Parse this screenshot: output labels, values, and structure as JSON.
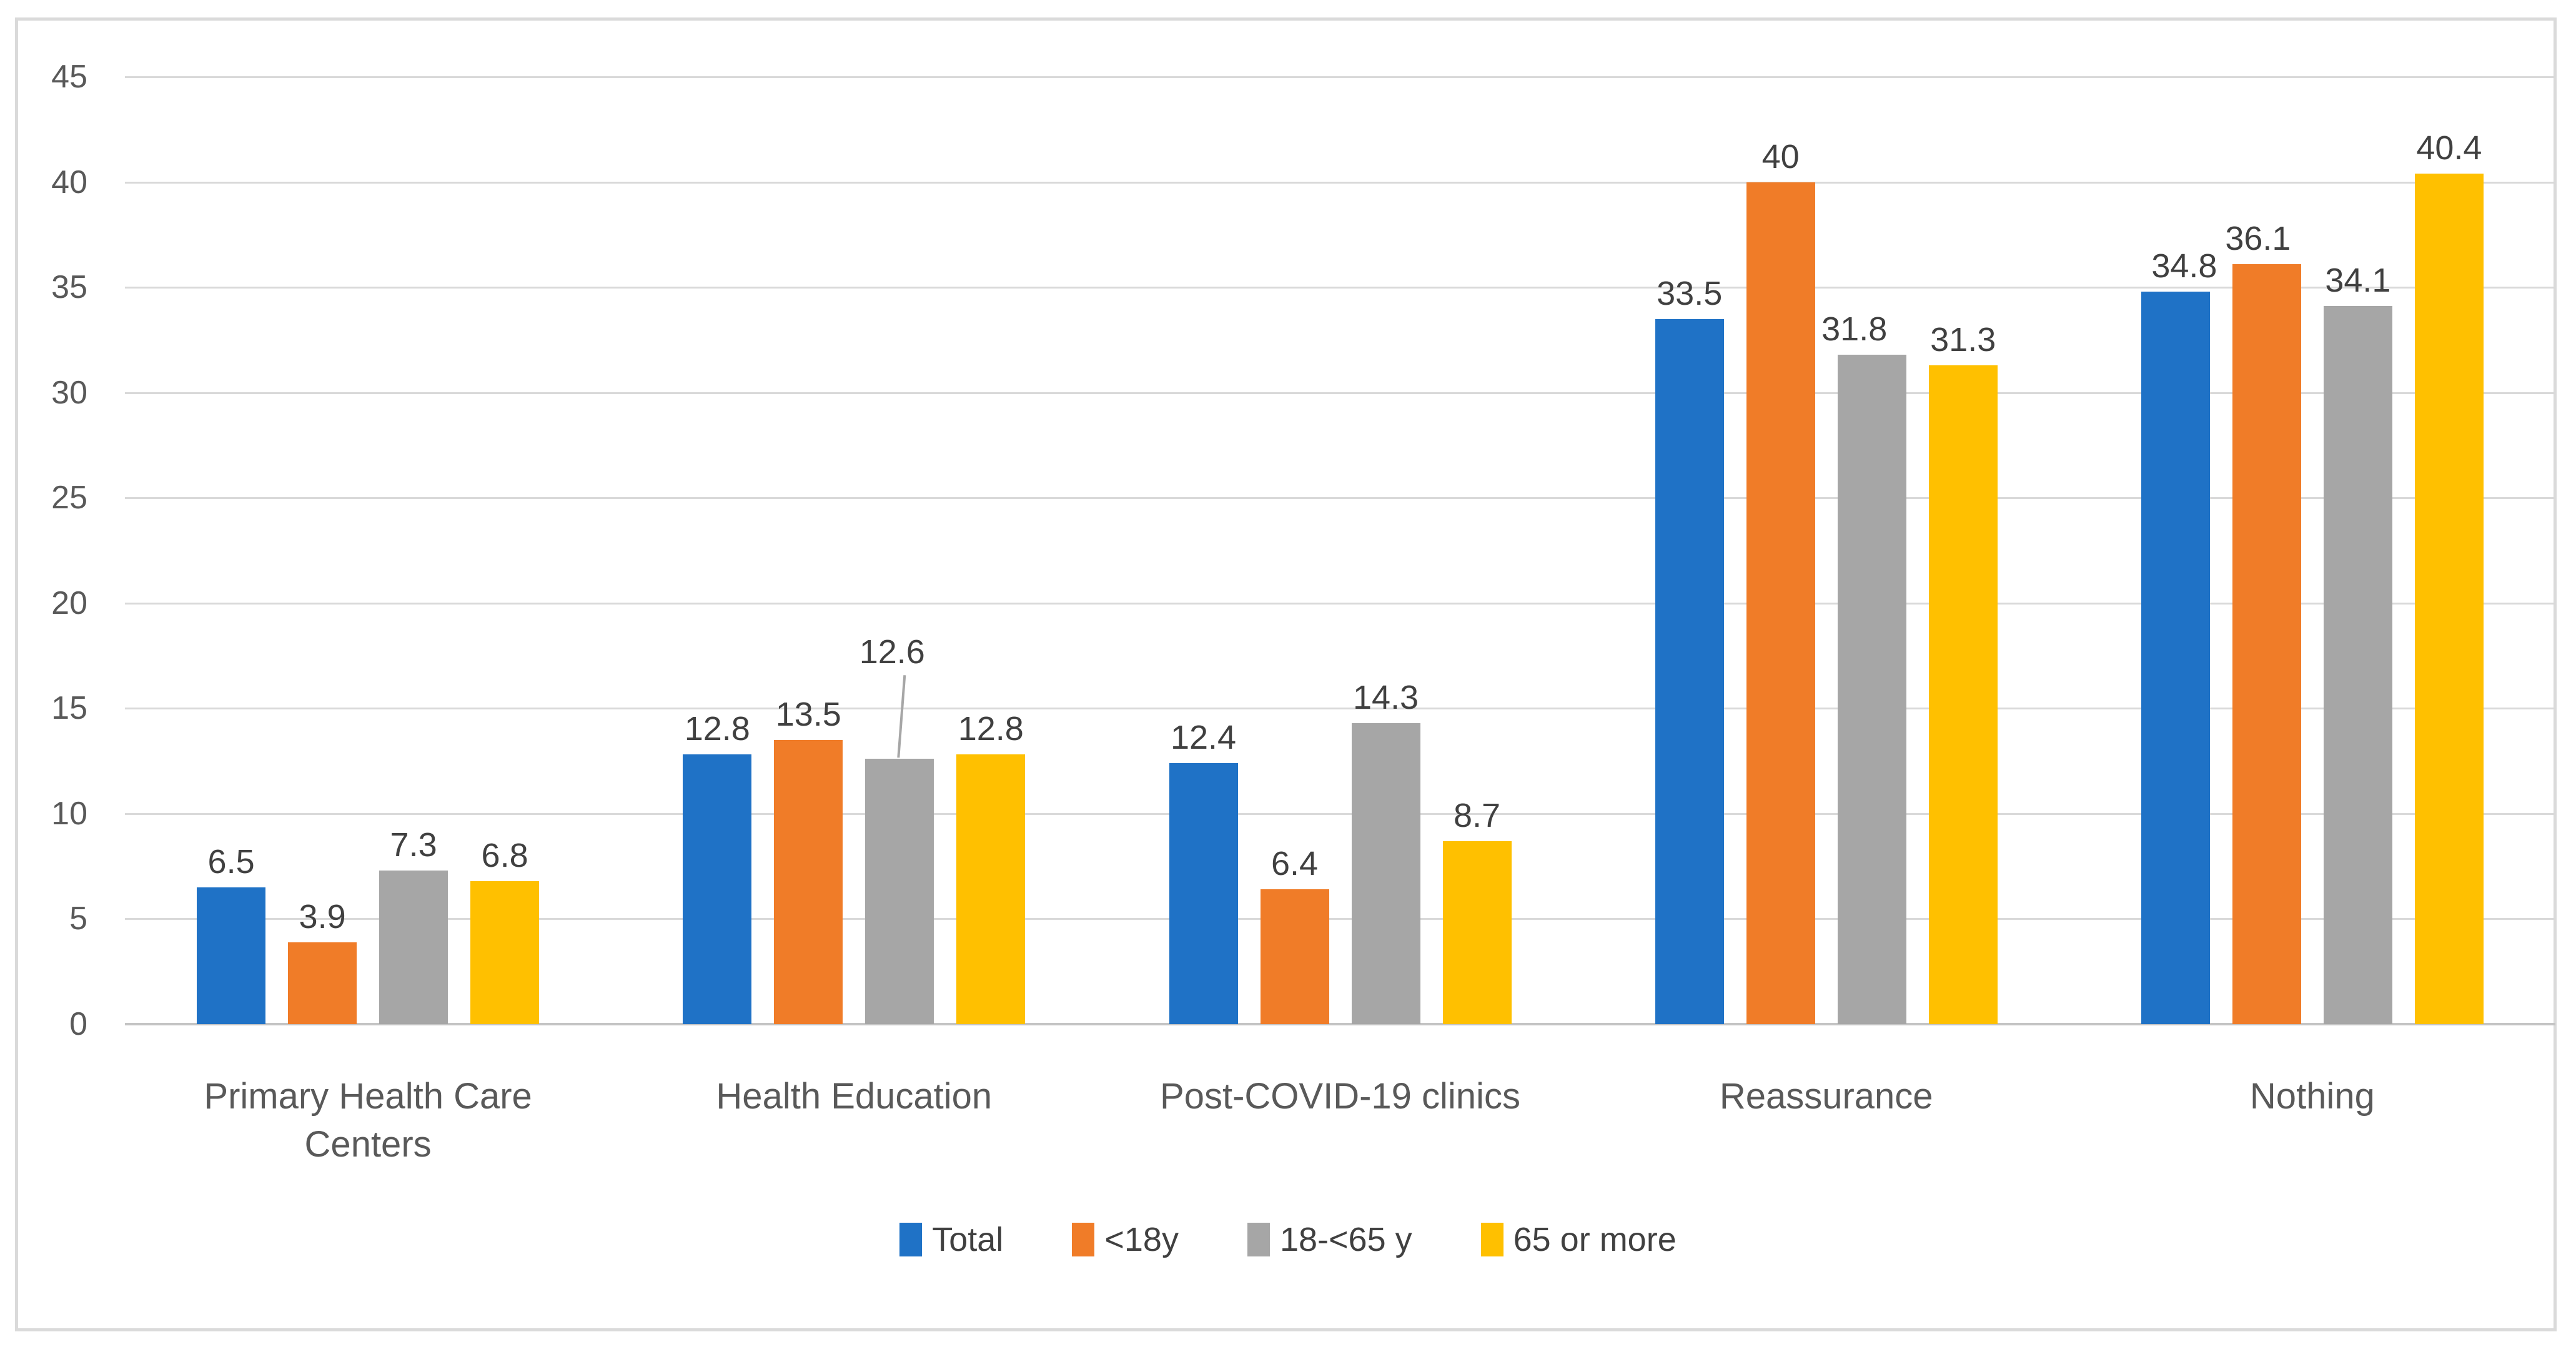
{
  "chart_data": {
    "type": "bar",
    "title": "",
    "xlabel": "",
    "ylabel": "",
    "categories": [
      "Primary Health Care Centers",
      "Health Education",
      "Post-COVID-19 clinics",
      "Reassurance",
      "Nothing"
    ],
    "series": [
      {
        "name": "Total",
        "color": "#1F72C6",
        "values": [
          6.5,
          12.8,
          12.4,
          33.5,
          34.8
        ]
      },
      {
        "name": "<18y",
        "color": "#F07C28",
        "values": [
          3.9,
          13.5,
          6.4,
          40,
          36.1
        ]
      },
      {
        "name": "18-<65 y",
        "color": "#A6A6A6",
        "values": [
          7.3,
          12.6,
          14.3,
          31.8,
          34.1
        ]
      },
      {
        "name": "65 or more",
        "color": "#FFC000",
        "values": [
          6.8,
          12.8,
          8.7,
          31.3,
          40.4
        ]
      }
    ],
    "ylim": [
      0,
      45
    ],
    "yticks": [
      0,
      5,
      10,
      15,
      20,
      25,
      30,
      35,
      40,
      45
    ],
    "grid": true,
    "legend_position": "bottom",
    "data_labels": true,
    "annotation_callout": {
      "series_index": 2,
      "category_index": 1,
      "label": "12.6",
      "has_leader_line": true
    },
    "colors": {
      "gridline": "#D9D9D9",
      "axis_line": "#C4C4C4",
      "tick_label": "#595959",
      "category_label": "#595959",
      "data_label": "#404040",
      "leader_line": "#A6A6A6",
      "frame_border": "#DADADA",
      "background": "#FFFFFF"
    }
  }
}
